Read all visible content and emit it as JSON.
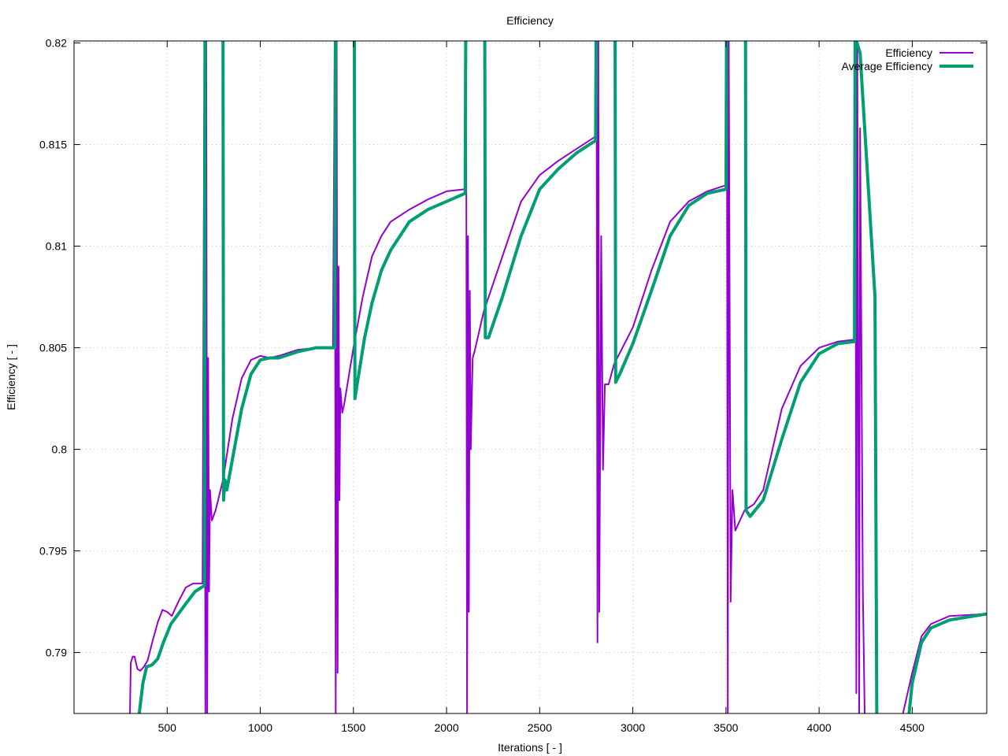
{
  "chart_data": {
    "type": "line",
    "title": "Efficiency",
    "xlabel": "Iterations [ - ]",
    "ylabel": "Efficiency [ - ]",
    "xlim": [
      0,
      4900
    ],
    "ylim": [
      0.787,
      0.8201
    ],
    "grid": true,
    "legend_position": "top-right",
    "xticks": [
      500,
      1000,
      1500,
      2000,
      2500,
      3000,
      3500,
      4000,
      4500
    ],
    "xtick_labels": [
      "500",
      "1000",
      "1500",
      "2000",
      "2500",
      "3000",
      "3500",
      "4000",
      "4500"
    ],
    "yticks": [
      0.82,
      0.815,
      0.81,
      0.805,
      0.8,
      0.795,
      0.79
    ],
    "ytick_labels": [
      "0.82",
      "0.815",
      "0.81",
      "0.805",
      "0.8",
      "0.795",
      "0.79"
    ],
    "series": [
      {
        "name": "Efficiency",
        "color": "#9400d3",
        "width": 2,
        "points": [
          [
            300,
            0.787
          ],
          [
            305,
            0.7895
          ],
          [
            315,
            0.7898
          ],
          [
            325,
            0.7898
          ],
          [
            340,
            0.7892
          ],
          [
            355,
            0.7891
          ],
          [
            375,
            0.7893
          ],
          [
            395,
            0.7896
          ],
          [
            420,
            0.7905
          ],
          [
            450,
            0.7915
          ],
          [
            475,
            0.7921
          ],
          [
            500,
            0.792
          ],
          [
            525,
            0.7918
          ],
          [
            560,
            0.7925
          ],
          [
            600,
            0.7932
          ],
          [
            640,
            0.7934
          ],
          [
            690,
            0.7934
          ],
          [
            700,
            0.83
          ],
          [
            705,
            0.78
          ],
          [
            710,
            0.83
          ],
          [
            715,
            0.7865
          ],
          [
            720,
            0.8045
          ],
          [
            725,
            0.793
          ],
          [
            730,
            0.798
          ],
          [
            740,
            0.7965
          ],
          [
            760,
            0.797
          ],
          [
            800,
            0.7985
          ],
          [
            850,
            0.8015
          ],
          [
            900,
            0.8035
          ],
          [
            950,
            0.8044
          ],
          [
            1000,
            0.8046
          ],
          [
            1050,
            0.8045
          ],
          [
            1100,
            0.8046
          ],
          [
            1200,
            0.8049
          ],
          [
            1300,
            0.805
          ],
          [
            1390,
            0.805
          ],
          [
            1400,
            0.83
          ],
          [
            1405,
            0.78
          ],
          [
            1410,
            0.83
          ],
          [
            1415,
            0.789
          ],
          [
            1420,
            0.809
          ],
          [
            1425,
            0.7975
          ],
          [
            1430,
            0.803
          ],
          [
            1440,
            0.8018
          ],
          [
            1450,
            0.8022
          ],
          [
            1500,
            0.805
          ],
          [
            1550,
            0.8075
          ],
          [
            1600,
            0.8095
          ],
          [
            1650,
            0.8105
          ],
          [
            1700,
            0.8112
          ],
          [
            1800,
            0.8118
          ],
          [
            1900,
            0.8123
          ],
          [
            2000,
            0.8127
          ],
          [
            2100,
            0.8128
          ],
          [
            2105,
            0.83
          ],
          [
            2110,
            0.78
          ],
          [
            2115,
            0.8105
          ],
          [
            2120,
            0.792
          ],
          [
            2125,
            0.8078
          ],
          [
            2130,
            0.8
          ],
          [
            2140,
            0.8045
          ],
          [
            2150,
            0.8048
          ],
          [
            2200,
            0.8068
          ],
          [
            2300,
            0.8095
          ],
          [
            2400,
            0.8122
          ],
          [
            2500,
            0.8135
          ],
          [
            2600,
            0.8142
          ],
          [
            2700,
            0.8148
          ],
          [
            2800,
            0.8154
          ],
          [
            2805,
            0.83
          ],
          [
            2810,
            0.7905
          ],
          [
            2815,
            0.83
          ],
          [
            2820,
            0.792
          ],
          [
            2830,
            0.8105
          ],
          [
            2840,
            0.799
          ],
          [
            2850,
            0.8032
          ],
          [
            2870,
            0.8032
          ],
          [
            2900,
            0.8042
          ],
          [
            3000,
            0.806
          ],
          [
            3100,
            0.8088
          ],
          [
            3200,
            0.8112
          ],
          [
            3300,
            0.8122
          ],
          [
            3400,
            0.8127
          ],
          [
            3500,
            0.813
          ],
          [
            3505,
            0.83
          ],
          [
            3510,
            0.786
          ],
          [
            3515,
            0.83
          ],
          [
            3525,
            0.7925
          ],
          [
            3535,
            0.798
          ],
          [
            3550,
            0.796
          ],
          [
            3600,
            0.797
          ],
          [
            3650,
            0.7973
          ],
          [
            3700,
            0.798
          ],
          [
            3800,
            0.802
          ],
          [
            3900,
            0.8041
          ],
          [
            4000,
            0.805
          ],
          [
            4100,
            0.8053
          ],
          [
            4190,
            0.8054
          ],
          [
            4195,
            0.83
          ],
          [
            4200,
            0.788
          ],
          [
            4205,
            0.83
          ],
          [
            4215,
            0.78
          ],
          [
            4220,
            0.8158
          ],
          [
            4235,
            0.793
          ],
          [
            4245,
            0.785
          ],
          [
            4400,
            0.785
          ],
          [
            4450,
            0.787
          ],
          [
            4500,
            0.789
          ],
          [
            4550,
            0.7908
          ],
          [
            4600,
            0.7914
          ],
          [
            4700,
            0.7918
          ],
          [
            4900,
            0.7919
          ]
        ]
      },
      {
        "name": "Average Efficiency",
        "color": "#009e73",
        "width": 4,
        "points": [
          [
            350,
            0.787
          ],
          [
            370,
            0.7885
          ],
          [
            390,
            0.7893
          ],
          [
            420,
            0.7894
          ],
          [
            450,
            0.7897
          ],
          [
            480,
            0.7905
          ],
          [
            520,
            0.7914
          ],
          [
            560,
            0.7919
          ],
          [
            600,
            0.7924
          ],
          [
            650,
            0.793
          ],
          [
            700,
            0.7933
          ],
          [
            703,
            0.83
          ],
          [
            800,
            0.83
          ],
          [
            803,
            0.7975
          ],
          [
            810,
            0.7985
          ],
          [
            820,
            0.798
          ],
          [
            850,
            0.7995
          ],
          [
            900,
            0.802
          ],
          [
            950,
            0.8037
          ],
          [
            1000,
            0.8044
          ],
          [
            1050,
            0.8045
          ],
          [
            1100,
            0.8045
          ],
          [
            1200,
            0.8048
          ],
          [
            1300,
            0.805
          ],
          [
            1400,
            0.805
          ],
          [
            1403,
            0.83
          ],
          [
            1505,
            0.83
          ],
          [
            1508,
            0.8025
          ],
          [
            1520,
            0.8032
          ],
          [
            1560,
            0.8055
          ],
          [
            1600,
            0.8072
          ],
          [
            1650,
            0.8088
          ],
          [
            1700,
            0.8098
          ],
          [
            1800,
            0.8112
          ],
          [
            1900,
            0.8118
          ],
          [
            2000,
            0.8122
          ],
          [
            2100,
            0.8126
          ],
          [
            2103,
            0.83
          ],
          [
            2205,
            0.83
          ],
          [
            2208,
            0.8055
          ],
          [
            2225,
            0.8055
          ],
          [
            2300,
            0.8075
          ],
          [
            2400,
            0.8105
          ],
          [
            2500,
            0.8128
          ],
          [
            2600,
            0.8138
          ],
          [
            2700,
            0.8146
          ],
          [
            2800,
            0.8152
          ],
          [
            2803,
            0.83
          ],
          [
            2905,
            0.83
          ],
          [
            2908,
            0.8033
          ],
          [
            2930,
            0.8037
          ],
          [
            3000,
            0.8052
          ],
          [
            3100,
            0.8078
          ],
          [
            3200,
            0.8105
          ],
          [
            3300,
            0.812
          ],
          [
            3400,
            0.8126
          ],
          [
            3500,
            0.8128
          ],
          [
            3503,
            0.83
          ],
          [
            3605,
            0.83
          ],
          [
            3608,
            0.797
          ],
          [
            3630,
            0.7967
          ],
          [
            3700,
            0.7975
          ],
          [
            3800,
            0.8005
          ],
          [
            3900,
            0.8033
          ],
          [
            4000,
            0.8047
          ],
          [
            4100,
            0.8052
          ],
          [
            4190,
            0.8053
          ],
          [
            4193,
            0.83
          ],
          [
            4220,
            0.8195
          ],
          [
            4300,
            0.8075
          ],
          [
            4310,
            0.78
          ],
          [
            4480,
            0.78
          ],
          [
            4500,
            0.7885
          ],
          [
            4550,
            0.7905
          ],
          [
            4600,
            0.7912
          ],
          [
            4700,
            0.7916
          ],
          [
            4900,
            0.7919
          ]
        ]
      }
    ]
  }
}
